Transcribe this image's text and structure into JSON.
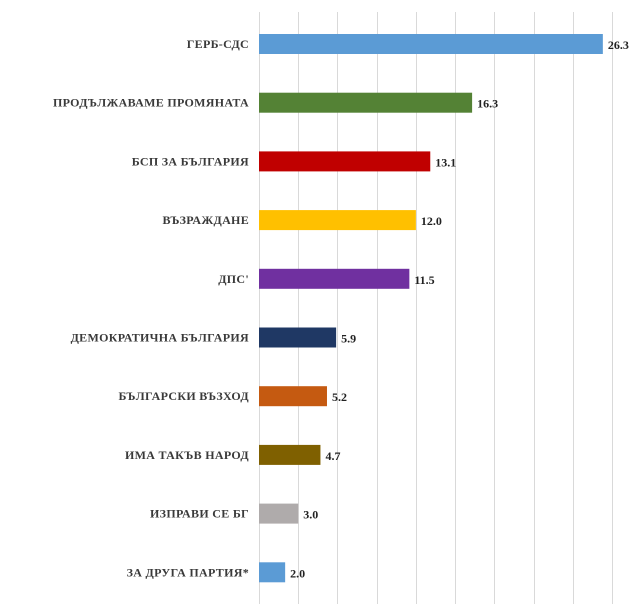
{
  "chart_data": {
    "type": "bar",
    "orientation": "horizontal",
    "categories": [
      "ГЕРБ-СДС",
      "ПРОДЪЛЖАВАМЕ ПРОМЯНАТА",
      "БСП ЗА БЪЛГАРИЯ",
      "ВЪЗРАЖДАНЕ",
      "ДПС'",
      "ДЕМОКРАТИЧНА БЪЛГАРИЯ",
      "БЪЛГАРСКИ ВЪЗХОД",
      "ИМА ТАКЪВ НАРОД",
      "ИЗПРАВИ СЕ БГ",
      "ЗА ДРУГА ПАРТИЯ*"
    ],
    "values": [
      26.3,
      16.3,
      13.1,
      12.0,
      11.5,
      5.9,
      5.2,
      4.7,
      3.0,
      2.0
    ],
    "value_labels": [
      "26.3",
      "16.3",
      "13.1",
      "12.0",
      "11.5",
      "5.9",
      "5.2",
      "4.7",
      "3.0",
      "2.0"
    ],
    "colors": [
      "#5b9bd5",
      "#548235",
      "#c00000",
      "#ffc000",
      "#7030a0",
      "#1f3864",
      "#c55a11",
      "#7f6000",
      "#afabab",
      "#5b9bd5"
    ],
    "xlim": [
      0,
      27
    ],
    "grid": "vertical",
    "title": "",
    "xlabel": "",
    "ylabel": ""
  }
}
